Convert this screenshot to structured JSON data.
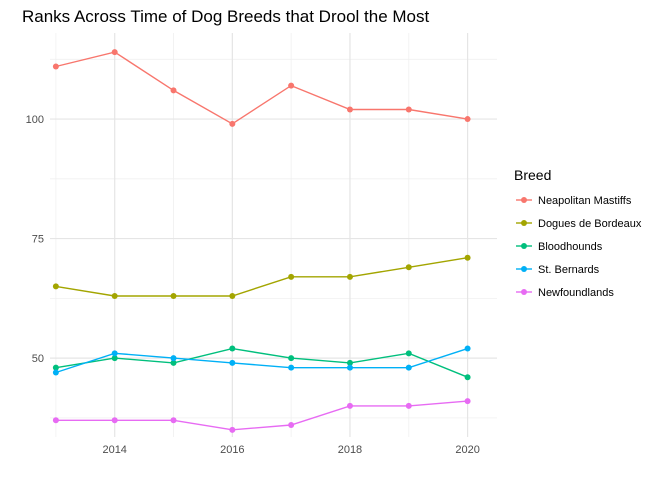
{
  "chart_data": {
    "type": "line",
    "title": "Ranks Across Time of Dog Breeds that Drool the Most",
    "xlabel": "",
    "ylabel": "",
    "x": [
      2013,
      2014,
      2015,
      2016,
      2017,
      2018,
      2019,
      2020
    ],
    "x_ticks": [
      2014,
      2016,
      2018,
      2020
    ],
    "y_ticks": [
      50,
      75,
      100
    ],
    "xlim": [
      2012.9,
      2020.5
    ],
    "ylim": [
      33.5,
      118
    ],
    "grid": true,
    "legend": {
      "title": "Breed",
      "position": "right"
    },
    "series": [
      {
        "name": "Neapolitan Mastiffs",
        "color": "#F8766D",
        "values": [
          111,
          114,
          106,
          99,
          107,
          102,
          102,
          100
        ]
      },
      {
        "name": "Dogues de Bordeaux",
        "color": "#A3A500",
        "values": [
          65,
          63,
          63,
          63,
          67,
          67,
          69,
          71
        ]
      },
      {
        "name": "Bloodhounds",
        "color": "#00BF7D",
        "values": [
          48,
          50,
          49,
          52,
          50,
          49,
          51,
          46
        ]
      },
      {
        "name": "St. Bernards",
        "color": "#00B0F6",
        "values": [
          47,
          51,
          50,
          49,
          48,
          48,
          48,
          52
        ]
      },
      {
        "name": "Newfoundlands",
        "color": "#E76BF3",
        "values": [
          37,
          37,
          37,
          35,
          36,
          40,
          40,
          41
        ]
      }
    ]
  }
}
